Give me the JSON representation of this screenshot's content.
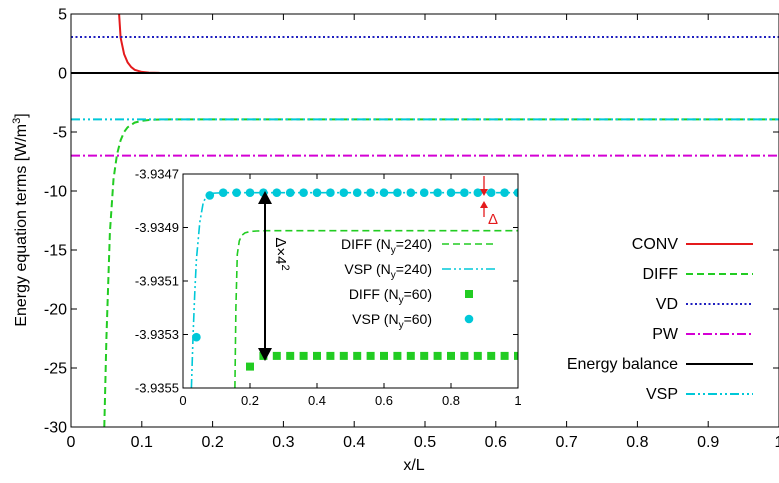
{
  "chart_data": [
    {
      "type": "line",
      "xlabel": "x/L",
      "ylabel": "Energy equation terms [W/m",
      "ylabel_sup": "3",
      "ylabel_end": "]",
      "xlim": [
        0,
        1
      ],
      "ylim": [
        -30,
        5
      ],
      "grid": false,
      "legend_position": "bottom-right",
      "x_ticks": [
        0,
        0.1,
        0.2,
        0.3,
        0.4,
        0.5,
        0.6,
        0.7,
        0.8,
        0.9,
        1
      ],
      "x_tick_labels": [
        "0",
        "0.1",
        "0.2",
        "0.3",
        "0.4",
        "0.5",
        "0.6",
        "0.7",
        "0.8",
        "0.9",
        "1"
      ],
      "y_ticks": [
        5,
        0,
        -5,
        -10,
        -15,
        -20,
        -25,
        -30
      ],
      "y_tick_labels": [
        "5",
        "0",
        "-5",
        "-10",
        "-15",
        "-20",
        "-25",
        "-30"
      ],
      "series": [
        {
          "name": "CONV",
          "color": "#e41a1c",
          "dash": "solid",
          "x": [
            0.068,
            0.07,
            0.075,
            0.08,
            0.085,
            0.09,
            0.1,
            0.11,
            0.125,
            0.15,
            1.0
          ],
          "y": [
            5,
            3.0,
            1.6,
            0.9,
            0.5,
            0.27,
            0.09,
            0.03,
            0.005,
            0,
            0
          ]
        },
        {
          "name": "DIFF",
          "color": "#22cc22",
          "dash": "dashed",
          "x": [
            0.047,
            0.05,
            0.055,
            0.06,
            0.065,
            0.07,
            0.075,
            0.08,
            0.09,
            0.1,
            0.11,
            0.12,
            0.14,
            1.0
          ],
          "y": [
            -30,
            -22.5,
            -13.5,
            -9.0,
            -6.9,
            -5.7,
            -5.0,
            -4.6,
            -4.2,
            -4.05,
            -3.98,
            -3.95,
            -3.935,
            -3.935
          ]
        },
        {
          "name": "VD",
          "color": "#1f1fbf",
          "dash": "dotted",
          "x": [
            0,
            1
          ],
          "y": [
            3.05,
            3.05
          ]
        },
        {
          "name": "PW",
          "color": "#d400d4",
          "dash": "dashdot",
          "x": [
            0,
            1
          ],
          "y": [
            -7.0,
            -7.0
          ]
        },
        {
          "name": "Energy balance",
          "color": "#000000",
          "dash": "solid",
          "x": [
            0,
            1
          ],
          "y": [
            0,
            0
          ]
        },
        {
          "name": "VSP",
          "color": "#00c8d8",
          "dash": "dashdotdot",
          "x": [
            0,
            1
          ],
          "y": [
            -3.935,
            -3.935
          ]
        }
      ]
    },
    {
      "type": "line",
      "xlim": [
        0,
        1
      ],
      "ylim": [
        -3.9355,
        -3.9347
      ],
      "grid": false,
      "legend_position": "center",
      "x_ticks": [
        0,
        0.2,
        0.4,
        0.6,
        0.8,
        1
      ],
      "x_tick_labels": [
        "0",
        "0.2",
        "0.4",
        "0.6",
        "0.8",
        "1"
      ],
      "y_ticks": [
        -3.9347,
        -3.9349,
        -3.9351,
        -3.9353,
        -3.9355
      ],
      "y_tick_labels": [
        "-3.9347",
        "-3.9349",
        "-3.9351",
        "-3.9353",
        "-3.9355"
      ],
      "series": [
        {
          "name": "DIFF (N",
          "sub": "y",
          "tail": "=240)",
          "color": "#22cc22",
          "dash": "dashed",
          "marker": "none",
          "x": [
            0.155,
            0.158,
            0.162,
            0.168,
            0.175,
            0.185,
            0.2,
            0.22,
            0.25,
            0.3,
            0.4,
            1.0
          ],
          "y": [
            -3.9355,
            -3.9352,
            -3.935,
            -3.93495,
            -3.93493,
            -3.93492,
            -3.934915,
            -3.934913,
            -3.934912,
            -3.934912,
            -3.934912,
            -3.934912
          ]
        },
        {
          "name": "VSP (N",
          "sub": "y",
          "tail": "=240)",
          "color": "#00c8d8",
          "dash": "dashdotdot",
          "marker": "none",
          "x": [
            0.025,
            0.03,
            0.035,
            0.04,
            0.05,
            0.06,
            0.07,
            0.08,
            0.1,
            0.13,
            0.2,
            1.0
          ],
          "y": [
            -3.9355,
            -3.9353,
            -3.93515,
            -3.93502,
            -3.93488,
            -3.93481,
            -3.93478,
            -3.934773,
            -3.934771,
            -3.93477,
            -3.93477,
            -3.93477
          ]
        },
        {
          "name": "DIFF (N",
          "sub": "y",
          "tail": "=60)",
          "color": "#22cc22",
          "dash": "none",
          "marker": "square",
          "x": [
            0.2,
            0.24,
            0.28,
            0.32,
            0.36,
            0.4,
            0.44,
            0.48,
            0.52,
            0.56,
            0.6,
            0.64,
            0.68,
            0.72,
            0.76,
            0.8,
            0.84,
            0.88,
            0.92,
            0.96,
            1.0
          ],
          "y": [
            -3.93542,
            -3.93538,
            -3.93538,
            -3.93538,
            -3.93538,
            -3.93538,
            -3.93538,
            -3.93538,
            -3.93538,
            -3.93538,
            -3.93538,
            -3.93538,
            -3.93538,
            -3.93538,
            -3.93538,
            -3.93538,
            -3.93538,
            -3.93538,
            -3.93538,
            -3.93538,
            -3.93538
          ]
        },
        {
          "name": "VSP (N",
          "sub": "y",
          "tail": "=60)",
          "color": "#00c8d8",
          "dash": "none",
          "marker": "circle",
          "x": [
            0.04,
            0.08,
            0.12,
            0.16,
            0.2,
            0.24,
            0.28,
            0.32,
            0.36,
            0.4,
            0.44,
            0.48,
            0.52,
            0.56,
            0.6,
            0.64,
            0.68,
            0.72,
            0.76,
            0.8,
            0.84,
            0.88,
            0.92,
            0.96,
            1.0
          ],
          "y": [
            -3.93531,
            -3.93478,
            -3.93477,
            -3.93477,
            -3.93477,
            -3.93477,
            -3.93477,
            -3.93477,
            -3.93477,
            -3.93477,
            -3.93477,
            -3.93477,
            -3.93477,
            -3.93477,
            -3.93477,
            -3.93477,
            -3.93477,
            -3.93477,
            -3.93477,
            -3.93477,
            -3.93477,
            -3.93477,
            -3.93477,
            -3.93477,
            -3.93477
          ]
        }
      ],
      "annotations": [
        {
          "text": "Δ",
          "color": "#e41a1c"
        },
        {
          "text": "Δ×4",
          "sup": "2",
          "color": "#000000"
        }
      ]
    }
  ]
}
